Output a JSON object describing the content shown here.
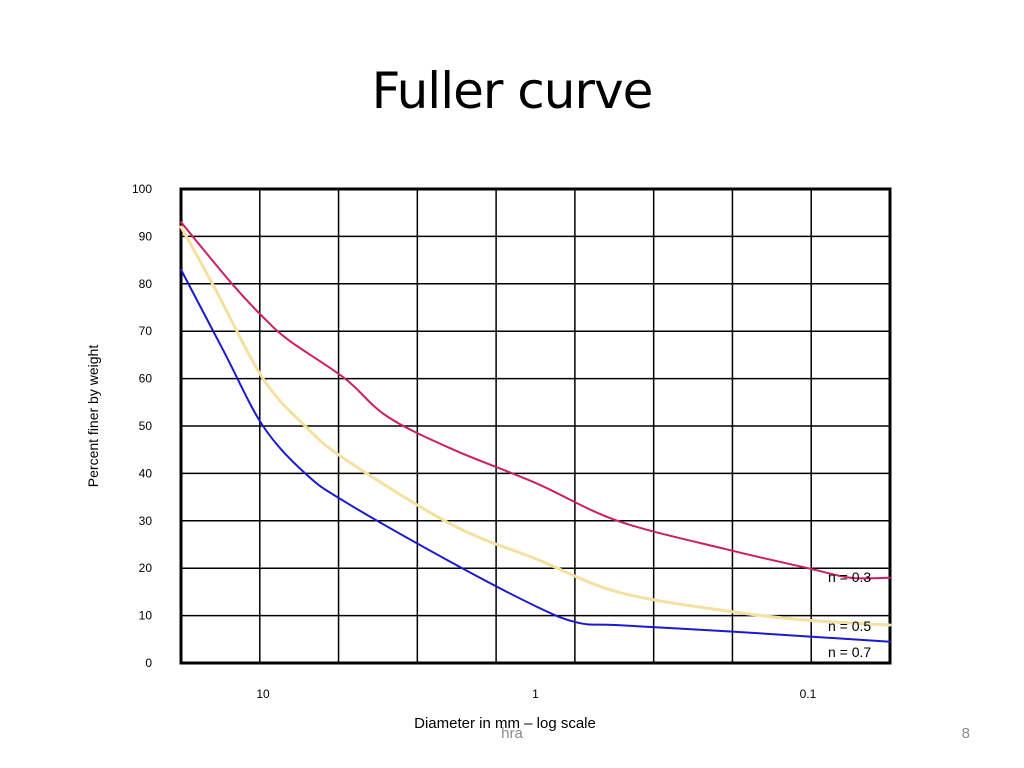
{
  "slide": {
    "title": "Fuller curve",
    "footer_text": "hra",
    "page_number": "8"
  },
  "chart_data": {
    "type": "line",
    "xlabel": "Diameter in mm – log scale",
    "ylabel": "Percent finer by weight",
    "x_scale": "log",
    "x_reversed": true,
    "xlim": [
      20,
      0.05
    ],
    "ylim": [
      0,
      100
    ],
    "y_ticks": [
      0,
      10,
      20,
      30,
      40,
      50,
      60,
      70,
      80,
      90,
      100
    ],
    "x_ticks": [
      {
        "value": 10,
        "label": "10"
      },
      {
        "value": 1,
        "label": "1"
      },
      {
        "value": 0.1,
        "label": "0.1"
      }
    ],
    "grid": true,
    "series": [
      {
        "name": "n = 0.3",
        "color": "#cc1f61",
        "points": [
          [
            20,
            93
          ],
          [
            13,
            80
          ],
          [
            10,
            73
          ],
          [
            8,
            68
          ],
          [
            5,
            60
          ],
          [
            3.5,
            52
          ],
          [
            2,
            45
          ],
          [
            1,
            38
          ],
          [
            0.5,
            30
          ],
          [
            0.2,
            24
          ],
          [
            0.1,
            20
          ],
          [
            0.07,
            18
          ],
          [
            0.05,
            18
          ]
        ]
      },
      {
        "name": "n = 0.5",
        "color": "#f5e0a0",
        "points": [
          [
            20,
            92
          ],
          [
            15,
            79
          ],
          [
            10,
            60
          ],
          [
            7,
            50
          ],
          [
            5,
            43
          ],
          [
            2,
            29
          ],
          [
            1,
            22
          ],
          [
            0.5,
            15
          ],
          [
            0.2,
            11
          ],
          [
            0.1,
            9
          ],
          [
            0.05,
            8
          ]
        ]
      },
      {
        "name": "n = 0.7",
        "color": "#1a1acc",
        "points": [
          [
            20,
            83
          ],
          [
            14,
            66
          ],
          [
            10,
            50
          ],
          [
            7,
            40
          ],
          [
            5,
            34
          ],
          [
            2,
            21
          ],
          [
            1,
            12
          ],
          [
            0.7,
            8.5
          ],
          [
            0.5,
            8
          ],
          [
            0.2,
            6.7
          ],
          [
            0.1,
            5.6
          ],
          [
            0.05,
            4.5
          ]
        ]
      }
    ]
  }
}
